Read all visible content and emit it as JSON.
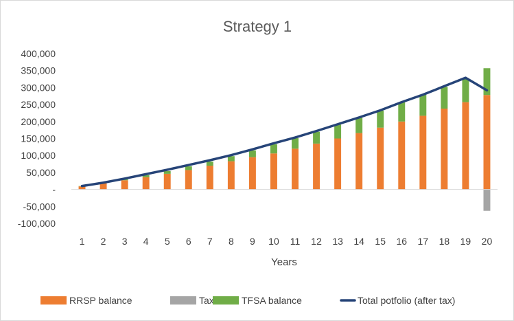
{
  "chart_data": {
    "type": "bar",
    "stacked": true,
    "title": "Strategy 1",
    "xlabel": "Years",
    "ylabel": "",
    "ylim": [
      -100000,
      400000
    ],
    "yticks": [
      -100000,
      -50000,
      0,
      50000,
      100000,
      150000,
      200000,
      250000,
      300000,
      350000,
      400000
    ],
    "ytick_labels": [
      "-100,000",
      "-50,000",
      "-",
      "50,000",
      "100,000",
      "150,000",
      "200,000",
      "250,000",
      "300,000",
      "350,000",
      "400,000"
    ],
    "grid": false,
    "legend_position": "bottom",
    "categories": [
      "1",
      "2",
      "3",
      "4",
      "5",
      "6",
      "7",
      "8",
      "9",
      "10",
      "11",
      "12",
      "13",
      "14",
      "15",
      "16",
      "17",
      "18",
      "19",
      "20"
    ],
    "series": [
      {
        "name": "RRSP balance",
        "type": "bar",
        "color": "#ed7d31",
        "values": [
          9000,
          18000,
          27000,
          36000,
          46000,
          57000,
          70000,
          83000,
          95000,
          106000,
          120000,
          135000,
          150000,
          166000,
          182000,
          200000,
          217000,
          238000,
          257000,
          278000
        ]
      },
      {
        "name": "Tax",
        "type": "bar",
        "color": "#a5a5a5",
        "values": [
          0,
          0,
          0,
          0,
          0,
          0,
          0,
          0,
          0,
          0,
          0,
          0,
          0,
          0,
          0,
          0,
          0,
          0,
          0,
          -63000
        ]
      },
      {
        "name": "TFSA balance",
        "type": "bar",
        "color": "#70ad47",
        "values": [
          1000,
          2000,
          3000,
          6000,
          8000,
          11000,
          12000,
          15000,
          20000,
          27000,
          31000,
          35000,
          41000,
          45000,
          50000,
          57000,
          62000,
          64000,
          71000,
          79000
        ]
      },
      {
        "name": "Total potfolio (after tax)",
        "type": "line",
        "color": "#264478",
        "values": [
          10000,
          20000,
          32000,
          45000,
          58000,
          72000,
          86000,
          101000,
          118000,
          136000,
          153000,
          172000,
          192000,
          212000,
          233000,
          257000,
          279000,
          304000,
          329000,
          292000
        ]
      }
    ]
  }
}
